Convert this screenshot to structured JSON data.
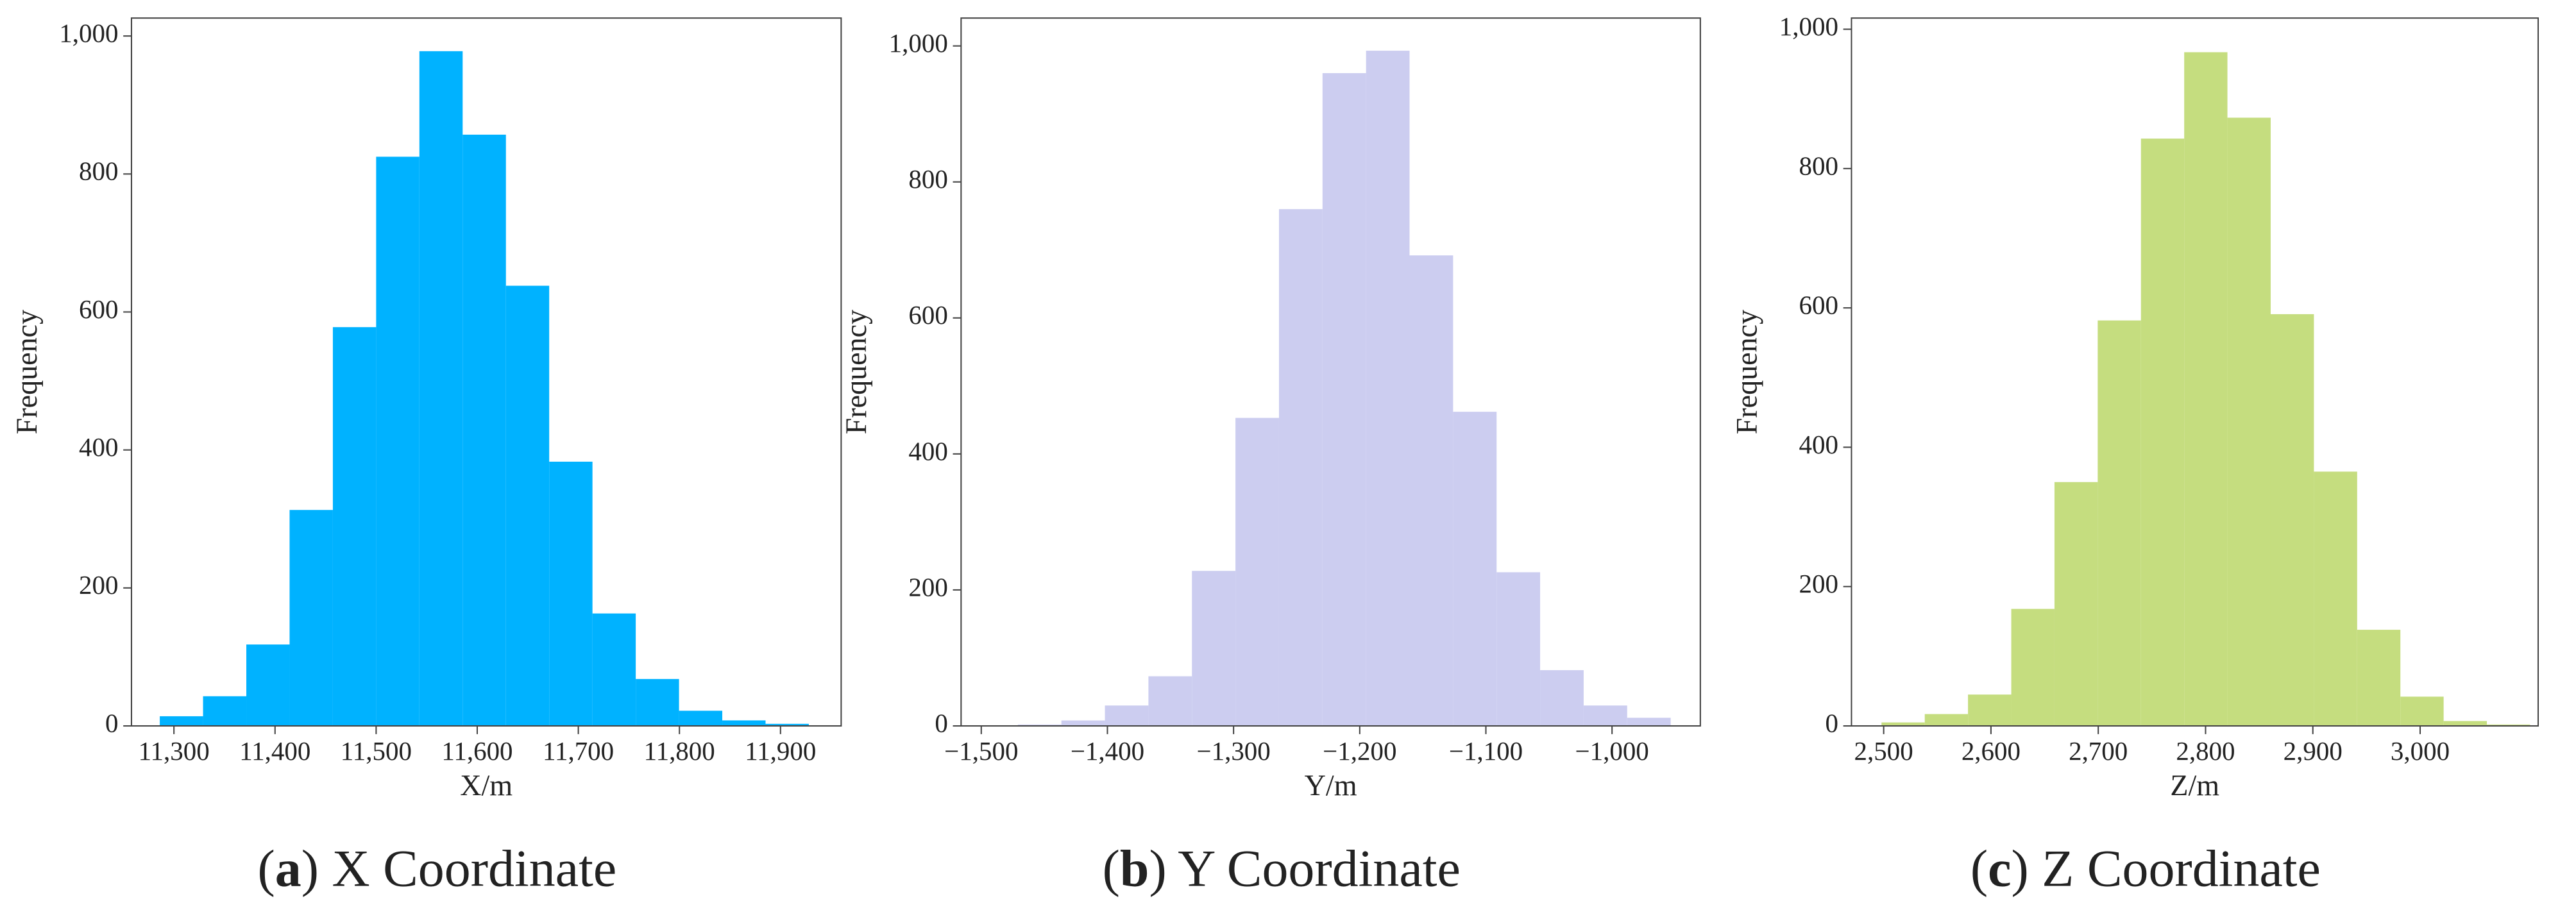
{
  "chart_data": [
    {
      "type": "histogram",
      "color": "#00b2ff",
      "ylabel": "Frequency",
      "xlabel": "X/m",
      "caption_parts": [
        "(",
        "a",
        ") X Coordinate"
      ],
      "bins": [
        11286.0,
        11328.8,
        11371.6,
        11414.4,
        11457.2,
        11500.0,
        11542.8,
        11585.6,
        11628.4,
        11671.2,
        11714.0,
        11756.8,
        11799.6,
        11842.4,
        11885.2,
        11928.0
      ],
      "values": [
        14,
        43,
        118,
        313,
        578,
        825,
        978,
        857,
        638,
        383,
        163,
        68,
        22,
        8,
        3
      ],
      "xlim": [
        11258,
        11960
      ],
      "ylim": [
        0,
        1026
      ],
      "xticks": [
        {
          "value": 11300,
          "label": "11,300"
        },
        {
          "value": 11400,
          "label": "11,400"
        },
        {
          "value": 11500,
          "label": "11,500"
        },
        {
          "value": 11600,
          "label": "11,600"
        },
        {
          "value": 11700,
          "label": "11,700"
        },
        {
          "value": 11800,
          "label": "11,800"
        },
        {
          "value": 11900,
          "label": "11,900"
        }
      ],
      "yticks": [
        0,
        200,
        400,
        600,
        800,
        {
          "value": 1000,
          "label": "1,000"
        }
      ]
    },
    {
      "type": "histogram",
      "color": "#cccdf0",
      "ylabel": "Frequency",
      "xlabel": "Y/m",
      "caption_parts": [
        "(",
        "b",
        ") Y Coordinate"
      ],
      "bins": [
        -1471,
        -1436.5,
        -1402,
        -1367.5,
        -1333,
        -1298.5,
        -1264,
        -1229.5,
        -1195,
        -1160.5,
        -1126,
        -1091.5,
        -1057,
        -1022.5,
        -988,
        -953.5
      ],
      "values": [
        2,
        8,
        30,
        73,
        228,
        453,
        760,
        960,
        993,
        692,
        462,
        226,
        82,
        30,
        12
      ],
      "xlim": [
        -1516,
        -930
      ],
      "ylim": [
        0,
        1041
      ],
      "xticks": [
        {
          "value": -1500,
          "label": "−1,500"
        },
        {
          "value": -1400,
          "label": "−1,400"
        },
        {
          "value": -1300,
          "label": "−1,300"
        },
        {
          "value": -1200,
          "label": "−1,200"
        },
        {
          "value": -1100,
          "label": "−1,100"
        },
        {
          "value": -1000,
          "label": "−1,000"
        }
      ],
      "yticks": [
        0,
        200,
        400,
        600,
        800,
        {
          "value": 1000,
          "label": "1,000"
        }
      ]
    },
    {
      "type": "histogram",
      "color": "#c5dd7f",
      "ylabel": "Frequency",
      "xlabel": "Z/m",
      "caption_parts": [
        "(",
        "c",
        ") Z Coordinate"
      ],
      "bins": [
        2498,
        2538.3,
        2578.6,
        2618.9,
        2659.2,
        2699.5,
        2739.8,
        2780.1,
        2820.4,
        2860.7,
        2901,
        2941.3,
        2981.6,
        3021.9,
        3062.2,
        3102.5
      ],
      "values": [
        5,
        17,
        45,
        168,
        350,
        582,
        843,
        967,
        873,
        591,
        365,
        138,
        42,
        7,
        2
      ],
      "xlim": [
        2470,
        3110
      ],
      "ylim": [
        0,
        1016
      ],
      "xticks": [
        {
          "value": 2500,
          "label": "2,500"
        },
        {
          "value": 2600,
          "label": "2,600"
        },
        {
          "value": 2700,
          "label": "2,700"
        },
        {
          "value": 2800,
          "label": "2,800"
        },
        {
          "value": 2900,
          "label": "2,900"
        },
        {
          "value": 3000,
          "label": "3,000"
        }
      ],
      "yticks": [
        0,
        200,
        400,
        600,
        800,
        {
          "value": 1000,
          "label": "1,000"
        }
      ]
    }
  ]
}
